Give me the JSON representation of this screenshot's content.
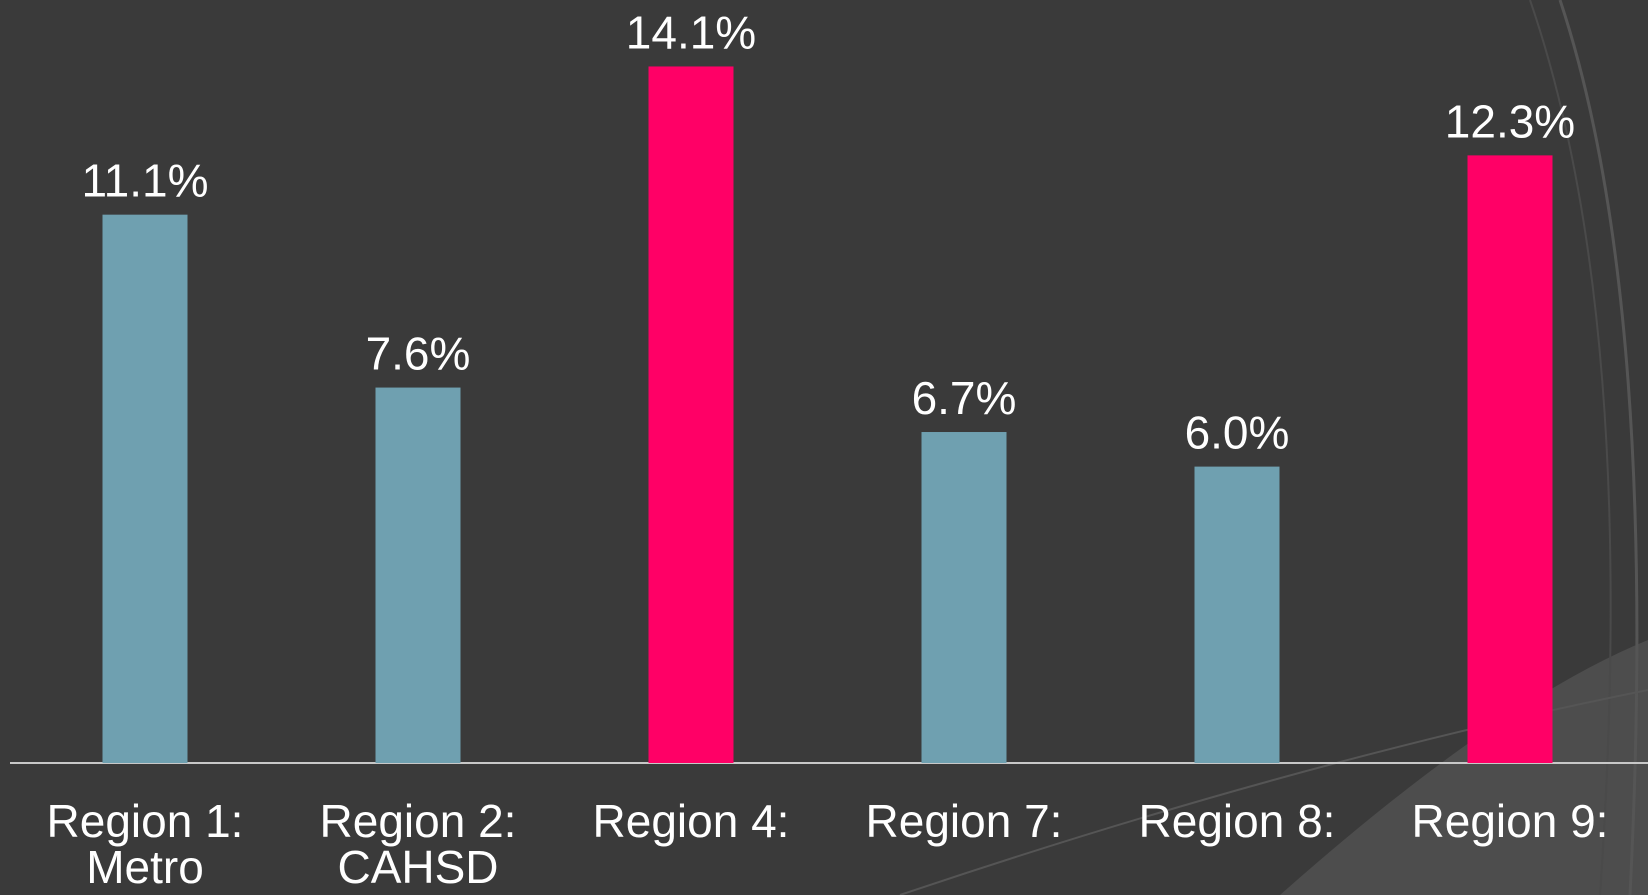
{
  "chart_data": {
    "type": "bar",
    "categories": [
      "Region 1: Metro",
      "Region 2: CAHSD",
      "Region 4:",
      "Region 7:",
      "Region 8:",
      "Region 9:"
    ],
    "values": [
      11.1,
      7.6,
      14.1,
      6.7,
      6.0,
      12.3
    ],
    "value_labels": [
      "11.1%",
      "7.6%",
      "14.1%",
      "6.7%",
      "6.0%",
      "12.3%"
    ],
    "colors": [
      "#6fa0b0",
      "#6fa0b0",
      "#ff0066",
      "#6fa0b0",
      "#6fa0b0",
      "#ff0066"
    ],
    "ylim": [
      0,
      15
    ]
  }
}
